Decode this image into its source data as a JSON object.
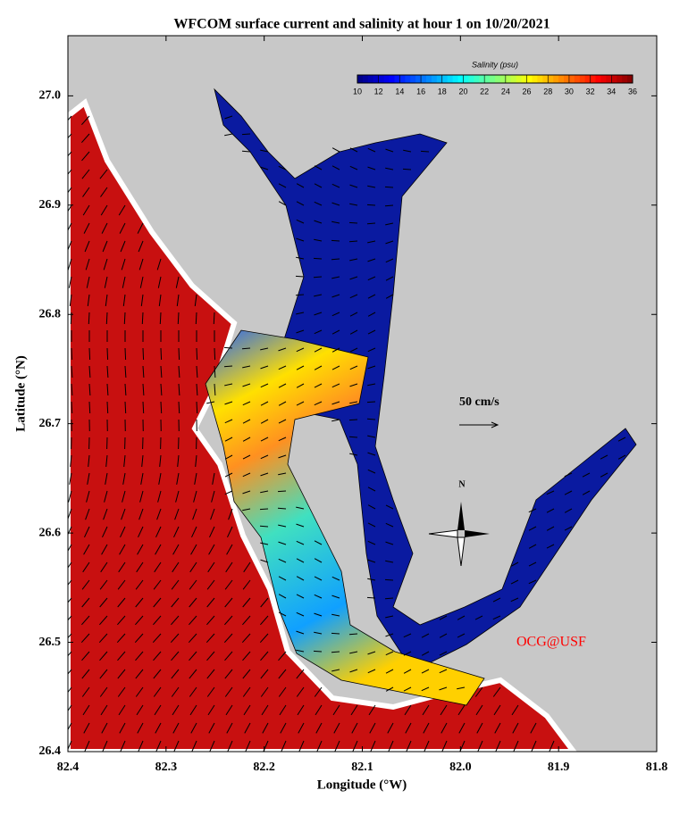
{
  "chart_data": {
    "type": "map",
    "title": "WFCOM surface current and salinity at hour 1 on 10/20/2021",
    "x_label": "Longitude (°W)",
    "y_label": "Latitude (°N)",
    "xlim": [
      82.4,
      81.8
    ],
    "xticks": [
      82.4,
      82.3,
      82.2,
      82.1,
      {
        "value": 82,
        "label": "82.0"
      },
      81.9,
      81.8
    ],
    "ylim": [
      26.4,
      27.055
    ],
    "yticks": [
      26.4,
      26.5,
      26.6,
      26.7,
      26.8,
      26.9,
      {
        "value": 27,
        "label": "27.0"
      }
    ],
    "colorbar": {
      "label": "Salinity (psu)",
      "colormap": "jet",
      "lim": [
        10,
        36
      ],
      "ticks": [
        10,
        12,
        14,
        16,
        18,
        20,
        22,
        24,
        26,
        28,
        30,
        32,
        34,
        36
      ]
    },
    "scale_arrow_label": "50 cm/s",
    "compass_label": "N",
    "credit": "OCG@USF"
  }
}
